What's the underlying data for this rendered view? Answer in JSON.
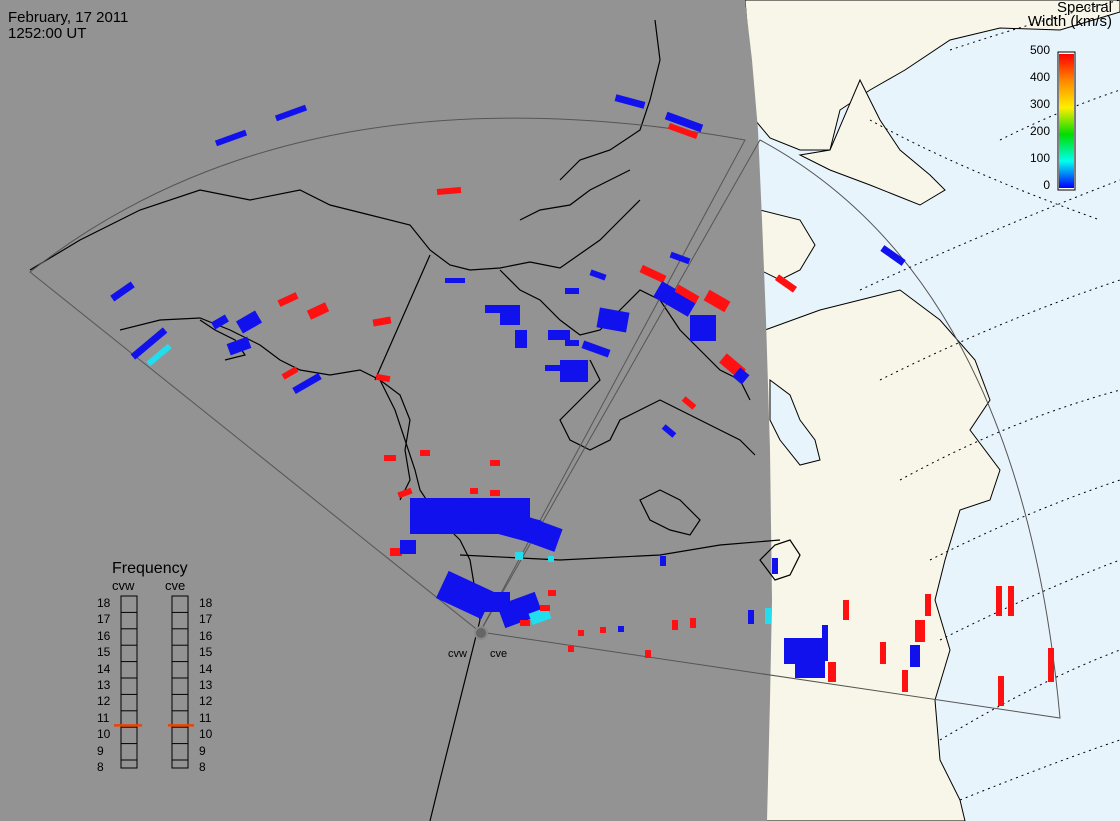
{
  "header": {
    "date": "February, 17 2011",
    "time": "1252:00 UT"
  },
  "colorbar": {
    "title_line1": "Spectral",
    "title_line2": "Width (km/s)",
    "ticks": [
      "500",
      "400",
      "300",
      "200",
      "100",
      "0"
    ],
    "colors": [
      "#ff0000",
      "#ff8800",
      "#ffee00",
      "#00dd00",
      "#00ffee",
      "#0000ff"
    ]
  },
  "frequency": {
    "title": "Frequency",
    "left_label": "cvw",
    "right_label": "cve",
    "scale": [
      "18",
      "17",
      "16",
      "15",
      "14",
      "13",
      "12",
      "11",
      "10",
      "9",
      "8"
    ],
    "cvw_value": 10.6,
    "cve_value": 10.6
  },
  "radars": {
    "west": "cvw",
    "east": "cve"
  },
  "colors": {
    "night": "#939393",
    "land_day": "#f8f6e8",
    "ocean_day": "#e8f4fb",
    "echo_low": "#1111ee",
    "echo_high": "#ff1111",
    "echo_mid": "#22ddee",
    "freq_marker": "#ee4400"
  }
}
